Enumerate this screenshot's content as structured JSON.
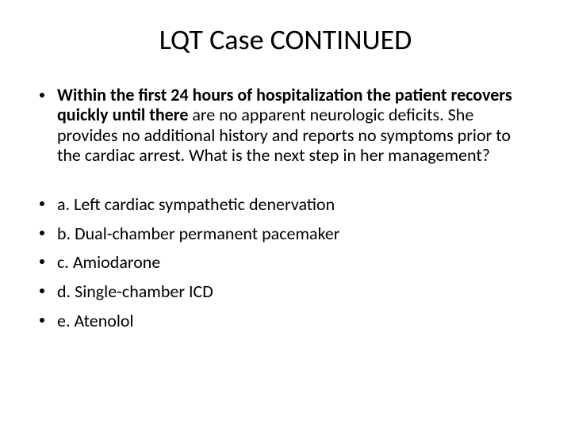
{
  "slide": {
    "title": "LQT Case CONTINUED",
    "title_fontsize": 36,
    "background_color": "#ffffff",
    "text_color": "#000000",
    "font_family": "Calibri",
    "question": {
      "bold_part": "Within the first 24 hours of hospitalization the patient recovers quickly until there ",
      "normal_part": "are no apparent neurologic deficits. She provides no additional history and reports no symptoms prior to the cardiac arrest. What is the next step in her management?",
      "fontsize": 22
    },
    "answers": [
      "a. Left cardiac sympathetic denervation",
      "b. Dual-chamber permanent pacemaker",
      "c. Amiodarone",
      "d. Single-chamber ICD",
      "e. Atenolol"
    ],
    "answer_fontsize": 22,
    "bullet_color": "#000000"
  }
}
